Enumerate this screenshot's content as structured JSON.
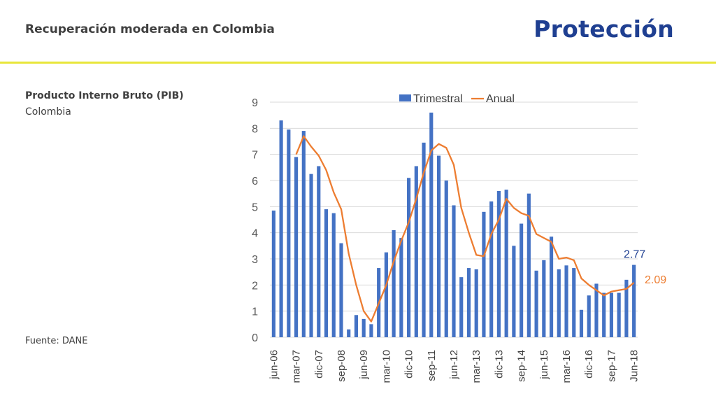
{
  "header": {
    "title": "Recuperación moderada en Colombia",
    "brand": "Protección",
    "accent_color": "#e8e63a",
    "brand_color": "#1f3f91"
  },
  "sidebar": {
    "title": "Producto Interno Bruto (PIB)",
    "subtitle": "Colombia",
    "source": "Fuente: DANE"
  },
  "chart_data": {
    "type": "bar",
    "title": "",
    "xlabel": "",
    "ylabel": "",
    "ylim": [
      0,
      9
    ],
    "yticks": [
      0,
      1,
      2,
      3,
      4,
      5,
      6,
      7,
      8,
      9
    ],
    "grid": true,
    "legend_position": "top",
    "categories": [
      "jun-06",
      "sep-06",
      "dic-06",
      "mar-07",
      "jun-07",
      "sep-07",
      "dic-07",
      "mar-08",
      "jun-08",
      "sep-08",
      "dic-08",
      "mar-09",
      "jun-09",
      "sep-09",
      "dic-09",
      "mar-10",
      "jun-10",
      "sep-10",
      "dic-10",
      "mar-11",
      "jun-11",
      "sep-11",
      "dic-11",
      "mar-12",
      "jun-12",
      "sep-12",
      "dic-12",
      "mar-13",
      "jun-13",
      "sep-13",
      "dic-13",
      "mar-14",
      "jun-14",
      "sep-14",
      "dic-14",
      "mar-15",
      "jun-15",
      "sep-15",
      "dic-15",
      "mar-16",
      "jun-16",
      "sep-16",
      "dic-16",
      "mar-17",
      "jun-17",
      "sep-17",
      "dic-17",
      "mar-18",
      "Jun-18"
    ],
    "xtick_labels": [
      "jun-06",
      "mar-07",
      "dic-07",
      "sep-08",
      "jun-09",
      "mar-10",
      "dic-10",
      "sep-11",
      "jun-12",
      "mar-13",
      "dic-13",
      "sep-14",
      "jun-15",
      "mar-16",
      "dic-16",
      "sep-17",
      "Jun-18"
    ],
    "series": [
      {
        "name": "Trimestral",
        "type": "bar",
        "color": "#4472c4",
        "values": [
          4.85,
          8.3,
          7.95,
          6.9,
          7.9,
          6.25,
          6.55,
          4.9,
          4.75,
          3.6,
          0.3,
          0.85,
          0.7,
          0.5,
          2.65,
          3.25,
          4.1,
          3.8,
          6.1,
          6.55,
          7.45,
          8.6,
          6.95,
          6.0,
          5.05,
          2.3,
          2.65,
          2.6,
          4.8,
          5.2,
          5.6,
          5.65,
          3.5,
          4.35,
          5.5,
          2.55,
          2.95,
          3.85,
          2.6,
          2.75,
          2.65,
          1.05,
          1.6,
          2.05,
          1.7,
          1.7,
          1.7,
          2.2,
          2.77
        ]
      },
      {
        "name": "Anual",
        "type": "line",
        "color": "#ed7d31",
        "values": [
          null,
          null,
          null,
          7.0,
          7.7,
          7.3,
          6.95,
          6.4,
          5.55,
          4.9,
          3.2,
          2.0,
          1.0,
          0.6,
          1.3,
          2.0,
          2.9,
          3.7,
          4.4,
          5.3,
          6.3,
          7.15,
          7.4,
          7.25,
          6.6,
          4.95,
          4.0,
          3.15,
          3.1,
          3.95,
          4.5,
          5.3,
          4.95,
          4.75,
          4.65,
          3.95,
          3.8,
          3.65,
          3.0,
          3.05,
          2.95,
          2.25,
          2.0,
          1.8,
          1.6,
          1.75,
          1.8,
          1.85,
          2.09
        ]
      }
    ],
    "annotations": [
      {
        "series": "Trimestral",
        "label": "2.77",
        "color": "#1f3f91"
      },
      {
        "series": "Anual",
        "label": "2.09",
        "color": "#ed7d31"
      }
    ]
  }
}
